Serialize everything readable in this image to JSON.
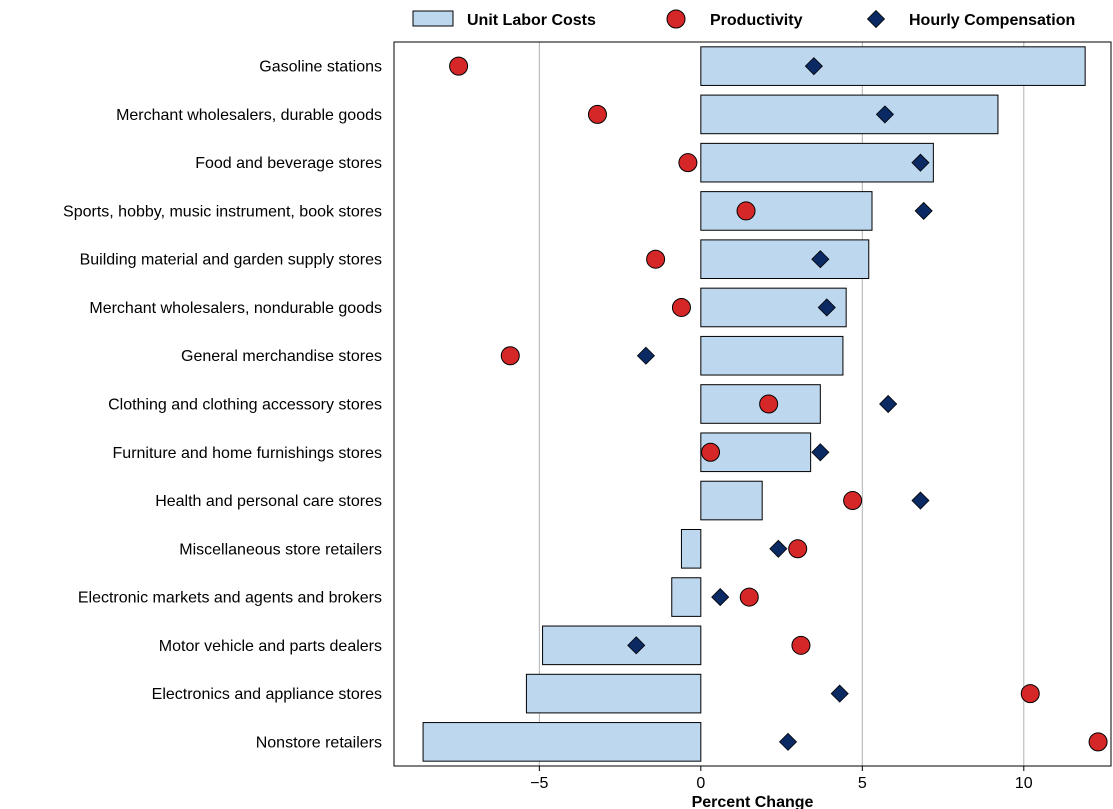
{
  "chart_data": {
    "type": "bar",
    "orientation": "horizontal",
    "xlabel": "Percent Change",
    "xlim": [
      -9.5,
      12.7
    ],
    "xticks": [
      -5,
      0,
      5,
      10
    ],
    "xtick_labels": [
      "−5",
      "0",
      "5",
      "10"
    ],
    "grid": "vertical",
    "legend_position": "top",
    "categories": [
      "Gasoline stations",
      "Merchant wholesalers, durable goods",
      "Food and beverage stores",
      "Sports, hobby, music instrument, book stores",
      "Building material and garden supply stores",
      "Merchant wholesalers, nondurable goods",
      "General merchandise stores",
      "Clothing and clothing accessory stores",
      "Furniture and home furnishings stores",
      "Health and personal care stores",
      "Miscellaneous store retailers",
      "Electronic markets and agents and brokers",
      "Motor vehicle and parts dealers",
      "Electronics and appliance stores",
      "Nonstore retailers"
    ],
    "series": [
      {
        "name": "Unit Labor Costs",
        "kind": "bar",
        "color": "#bdd7ee",
        "values": [
          11.9,
          9.2,
          7.2,
          5.3,
          5.2,
          4.5,
          4.4,
          3.7,
          3.4,
          1.9,
          -0.6,
          -0.9,
          -4.9,
          -5.4,
          -8.6
        ]
      },
      {
        "name": "Productivity",
        "kind": "circle",
        "color": "#d62728",
        "values": [
          -7.5,
          -3.2,
          -0.4,
          1.4,
          -1.4,
          -0.6,
          -5.9,
          2.1,
          0.3,
          4.7,
          3.0,
          1.5,
          3.1,
          10.2,
          12.3
        ]
      },
      {
        "name": "Hourly Compensation",
        "kind": "diamond",
        "color": "#0b2a63",
        "values": [
          3.5,
          5.7,
          6.8,
          6.9,
          3.7,
          3.9,
          -1.7,
          5.8,
          3.7,
          6.8,
          2.4,
          0.6,
          -2.0,
          4.3,
          2.7
        ]
      }
    ]
  }
}
